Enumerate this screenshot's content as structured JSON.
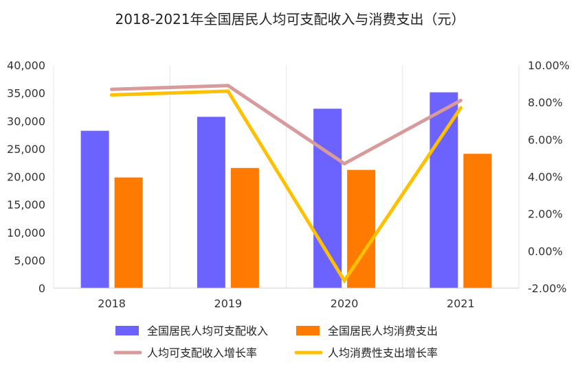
{
  "chart_data": {
    "type": "bar",
    "title": "2018-2021年全国居民人均可支配收入与消费支出（元）",
    "categories": [
      "2018",
      "2019",
      "2020",
      "2021"
    ],
    "series": [
      {
        "name": "全国居民人均可支配收入",
        "type": "bar",
        "axis": "left",
        "color": "#6c63ff",
        "values": [
          28228,
          30733,
          32189,
          35128
        ]
      },
      {
        "name": "全国居民人均消费支出",
        "type": "bar",
        "axis": "left",
        "color": "#ff7a00",
        "values": [
          19853,
          21559,
          21210,
          24100
        ]
      },
      {
        "name": "人均可支配收入增长率",
        "type": "line",
        "axis": "right",
        "color": "#d89a9a",
        "values": [
          8.7,
          8.9,
          4.7,
          8.1
        ]
      },
      {
        "name": "人均消费性支出增长率",
        "type": "line",
        "axis": "right",
        "color": "#ffc000",
        "values": [
          8.4,
          8.6,
          -1.6,
          7.7
        ]
      }
    ],
    "y_left": {
      "min": 0,
      "max": 40000,
      "step": 5000,
      "tick_labels": [
        "0",
        "5,000",
        "10,000",
        "15,000",
        "20,000",
        "25,000",
        "30,000",
        "35,000",
        "40,000"
      ]
    },
    "y_right": {
      "min": -2,
      "max": 10,
      "step": 2,
      "tick_labels": [
        "-2.00%",
        "0.00%",
        "2.00%",
        "4.00%",
        "6.00%",
        "8.00%",
        "10.00%"
      ]
    },
    "legend_position": "bottom",
    "grid": "vertical"
  }
}
